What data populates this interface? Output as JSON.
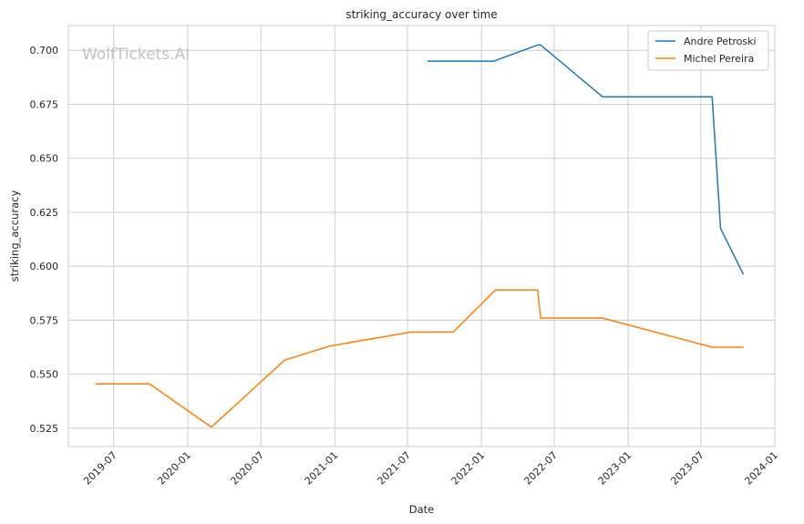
{
  "chart_data": {
    "type": "line",
    "title": "striking_accuracy over time",
    "xlabel": "Date",
    "ylabel": "striking_accuracy",
    "watermark": "WolfTickets.AI",
    "xlim": [
      "2019-03-10",
      "2024-01-01"
    ],
    "ylim": [
      0.5165,
      0.7115
    ],
    "x_ticks": [
      "2019-07",
      "2020-01",
      "2020-07",
      "2021-01",
      "2021-07",
      "2022-01",
      "2022-07",
      "2023-01",
      "2023-07",
      "2024-01"
    ],
    "y_ticks": [
      0.525,
      0.55,
      0.575,
      0.6,
      0.625,
      0.65,
      0.675,
      0.7
    ],
    "y_tick_labels": [
      "0.525",
      "0.550",
      "0.575",
      "0.600",
      "0.625",
      "0.650",
      "0.675",
      "0.700"
    ],
    "grid": true,
    "legend_position": "top-right",
    "series": [
      {
        "name": "Andre Petroski",
        "color": "#1f77b4",
        "x": [
          "2021-08-21",
          "2022-02-01",
          "2022-05-21",
          "2022-05-28",
          "2022-10-29",
          "2023-07-29",
          "2023-08-19",
          "2023-10-14"
        ],
        "y": [
          0.695,
          0.695,
          0.7025,
          0.7025,
          0.6785,
          0.6785,
          0.6175,
          0.5965
        ]
      },
      {
        "name": "Michel Pereira",
        "color": "#ff7f0e",
        "x": [
          "2019-05-18",
          "2019-09-28",
          "2020-02-29",
          "2020-08-29",
          "2020-12-19",
          "2021-07-10",
          "2021-10-23",
          "2022-02-05",
          "2022-05-21",
          "2022-05-28",
          "2022-10-29",
          "2023-07-29",
          "2023-10-14"
        ],
        "y": [
          0.5455,
          0.5455,
          0.5255,
          0.5565,
          0.563,
          0.5695,
          0.5695,
          0.589,
          0.589,
          0.576,
          0.576,
          0.5625,
          0.5625
        ]
      }
    ]
  }
}
